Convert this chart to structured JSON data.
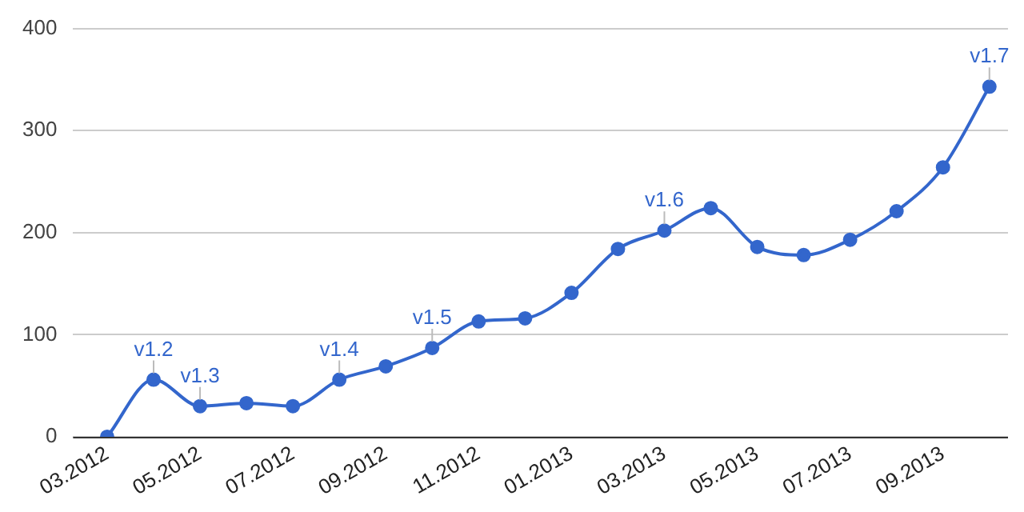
{
  "chart_data": {
    "type": "line",
    "x": [
      "2012-03",
      "2012-04",
      "2012-05",
      "2012-06",
      "2012-07",
      "2012-08",
      "2012-09",
      "2012-10",
      "2012-11",
      "2012-12",
      "2013-01",
      "2013-02",
      "2013-03",
      "2013-04",
      "2013-05",
      "2013-06",
      "2013-07",
      "2013-08",
      "2013-09",
      "2013-10"
    ],
    "series": [
      {
        "color": "#3366cc",
        "values": [
          0,
          56,
          30,
          33,
          30,
          56,
          69,
          87,
          113,
          116,
          141,
          184,
          202,
          224,
          186,
          178,
          193,
          221,
          264,
          343
        ]
      }
    ],
    "xlim": [
      "2012-02-09",
      "2013-10-13"
    ],
    "xticks": [
      {
        "value": "2012-03",
        "label": "03.2012"
      },
      {
        "value": "2012-05",
        "label": "05.2012"
      },
      {
        "value": "2012-07",
        "label": "07.2012"
      },
      {
        "value": "2012-09",
        "label": "09.2012"
      },
      {
        "value": "2012-11",
        "label": "11.2012"
      },
      {
        "value": "2013-01",
        "label": "01.2013"
      },
      {
        "value": "2013-03",
        "label": "03.2013"
      },
      {
        "value": "2013-05",
        "label": "05.2013"
      },
      {
        "value": "2013-07",
        "label": "07.2013"
      },
      {
        "value": "2013-09",
        "label": "09.2013"
      }
    ],
    "ylim": [
      0,
      400
    ],
    "yticks": [
      0,
      100,
      200,
      300,
      400
    ],
    "grid": "y",
    "marker": "circle",
    "line_style": "solid",
    "legend": false,
    "annotations": [
      {
        "text": "v1.2",
        "x": "2012-04",
        "y": 56
      },
      {
        "text": "v1.3",
        "x": "2012-05",
        "y": 30
      },
      {
        "text": "v1.4",
        "x": "2012-08",
        "y": 56
      },
      {
        "text": "v1.5",
        "x": "2012-10",
        "y": 87
      },
      {
        "text": "v1.6",
        "x": "2013-03",
        "y": 202
      },
      {
        "text": "v1.7",
        "x": "2013-10",
        "y": 343
      }
    ]
  }
}
